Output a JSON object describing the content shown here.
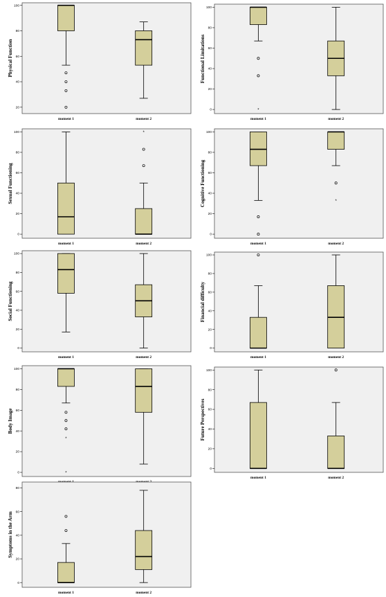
{
  "colors": {
    "box_fill": "#d4cf9b",
    "plot_bg": "#f0f0f0",
    "line": "#000000",
    "frame": "#555555"
  },
  "chart_data": [
    {
      "type": "box",
      "ylabel": "Physical Function",
      "categories": [
        "moment 1",
        "moment 2"
      ],
      "yticks": [
        20,
        40,
        60,
        80,
        100
      ],
      "ylim": [
        15,
        102
      ],
      "boxes": [
        {
          "whisker_low": 53,
          "q1": 80,
          "median": 100,
          "q3": 100,
          "whisker_high": 100,
          "outliers": [
            47,
            40,
            33,
            20
          ],
          "extremes": []
        },
        {
          "whisker_low": 27,
          "q1": 53,
          "median": 73,
          "q3": 80,
          "whisker_high": 87,
          "outliers": [],
          "extremes": []
        }
      ]
    },
    {
      "type": "box",
      "ylabel": "Functional Limitations",
      "categories": [
        "moment 1",
        "moment 2"
      ],
      "yticks": [
        0,
        20,
        40,
        60,
        80,
        100
      ],
      "ylim": [
        -4,
        103
      ],
      "boxes": [
        {
          "whisker_low": 67,
          "q1": 83,
          "median": 100,
          "q3": 100,
          "whisker_high": 100,
          "outliers": [
            50,
            33
          ],
          "extremes": [
            0
          ]
        },
        {
          "whisker_low": 0,
          "q1": 33,
          "median": 50,
          "q3": 67,
          "whisker_high": 100,
          "outliers": [],
          "extremes": []
        }
      ]
    },
    {
      "type": "box",
      "ylabel": "Sexual Functioning",
      "categories": [
        "moment 1",
        "moment 2"
      ],
      "yticks": [
        0,
        20,
        40,
        60,
        80,
        100
      ],
      "ylim": [
        -4,
        103
      ],
      "boxes": [
        {
          "whisker_low": 0,
          "q1": 0,
          "median": 17,
          "q3": 50,
          "whisker_high": 100,
          "outliers": [],
          "extremes": []
        },
        {
          "whisker_low": 0,
          "q1": 0,
          "median": 0,
          "q3": 25,
          "whisker_high": 50,
          "outliers": [
            83,
            67
          ],
          "extremes": [
            100
          ]
        }
      ]
    },
    {
      "type": "box",
      "ylabel": "Cognitive Functioning",
      "categories": [
        "moment 1",
        "moment 2"
      ],
      "yticks": [
        0,
        20,
        40,
        60,
        80,
        100
      ],
      "ylim": [
        -4,
        103
      ],
      "boxes": [
        {
          "whisker_low": 33,
          "q1": 67,
          "median": 83,
          "q3": 100,
          "whisker_high": 100,
          "outliers": [
            17,
            0
          ],
          "extremes": []
        },
        {
          "whisker_low": 67,
          "q1": 83,
          "median": 100,
          "q3": 100,
          "whisker_high": 100,
          "outliers": [
            50
          ],
          "extremes": [
            33
          ]
        }
      ]
    },
    {
      "type": "box",
      "ylabel": "Social Functioning",
      "categories": [
        "moment 1",
        "moment 2"
      ],
      "yticks": [
        0,
        20,
        40,
        60,
        80,
        100
      ],
      "ylim": [
        -4,
        103
      ],
      "boxes": [
        {
          "whisker_low": 17,
          "q1": 58,
          "median": 83,
          "q3": 100,
          "whisker_high": 100,
          "outliers": [],
          "extremes": []
        },
        {
          "whisker_low": 0,
          "q1": 33,
          "median": 50,
          "q3": 67,
          "whisker_high": 100,
          "outliers": [],
          "extremes": []
        }
      ]
    },
    {
      "type": "box",
      "ylabel": "Financial difficulty",
      "categories": [
        "moment 1",
        "moment 2"
      ],
      "yticks": [
        0,
        20,
        40,
        60,
        80,
        100
      ],
      "ylim": [
        -4,
        103
      ],
      "boxes": [
        {
          "whisker_low": 0,
          "q1": 0,
          "median": 0,
          "q3": 33,
          "whisker_high": 67,
          "outliers": [
            100
          ],
          "extremes": []
        },
        {
          "whisker_low": 0,
          "q1": 0,
          "median": 33,
          "q3": 67,
          "whisker_high": 100,
          "outliers": [],
          "extremes": []
        }
      ]
    },
    {
      "type": "box",
      "ylabel": "Body Image",
      "categories": [
        "moment 1",
        "moment 2"
      ],
      "yticks": [
        0,
        20,
        40,
        60,
        80,
        100
      ],
      "ylim": [
        -4,
        103
      ],
      "boxes": [
        {
          "whisker_low": 67,
          "q1": 83,
          "median": 100,
          "q3": 100,
          "whisker_high": 100,
          "outliers": [
            58,
            50,
            42
          ],
          "extremes": [
            33,
            0
          ]
        },
        {
          "whisker_low": 8,
          "q1": 58,
          "median": 83,
          "q3": 100,
          "whisker_high": 100,
          "outliers": [],
          "extremes": []
        }
      ]
    },
    {
      "type": "box",
      "ylabel": "Future Perspectives",
      "categories": [
        "moment 1",
        "moment 2"
      ],
      "yticks": [
        0,
        20,
        40,
        60,
        80,
        100
      ],
      "ylim": [
        -4,
        103
      ],
      "boxes": [
        {
          "whisker_low": 0,
          "q1": 0,
          "median": 0,
          "q3": 67,
          "whisker_high": 100,
          "outliers": [],
          "extremes": []
        },
        {
          "whisker_low": 0,
          "q1": 0,
          "median": 0,
          "q3": 33,
          "whisker_high": 67,
          "outliers": [
            100
          ],
          "extremes": []
        }
      ]
    },
    {
      "type": "box",
      "ylabel": "Symptoms in the Arm",
      "categories": [
        "moment 1",
        "moment 2"
      ],
      "yticks": [
        0,
        20,
        40,
        60,
        80
      ],
      "ylim": [
        -4,
        85
      ],
      "boxes": [
        {
          "whisker_low": 0,
          "q1": 0,
          "median": 0,
          "q3": 17,
          "whisker_high": 33,
          "outliers": [
            56,
            44
          ],
          "extremes": []
        },
        {
          "whisker_low": 0,
          "q1": 11,
          "median": 22,
          "q3": 44,
          "whisker_high": 78,
          "outliers": [],
          "extremes": []
        }
      ]
    }
  ]
}
